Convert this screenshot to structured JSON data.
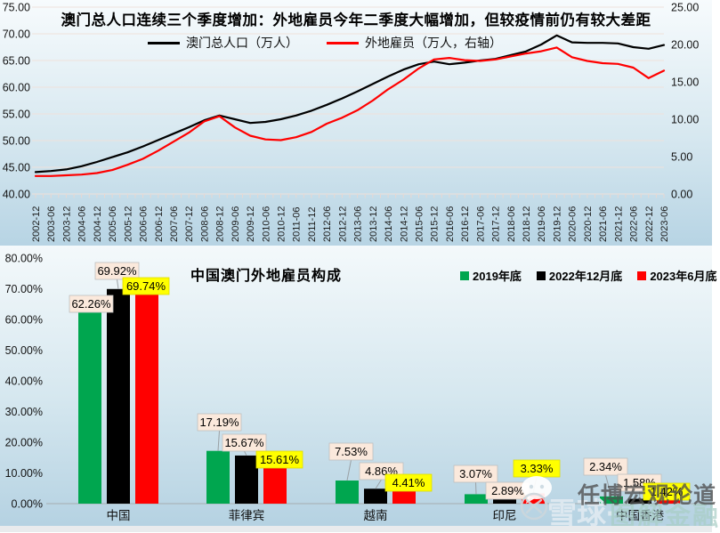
{
  "watermark": {
    "brand": "雪球·",
    "text1": "任博宏观论道",
    "text2": "图解金融"
  },
  "chart_data": [
    {
      "type": "line",
      "title": "澳门总人口连续三个季度增加：外地雇员今年二季度大幅增加，但较疫情前仍有较大差距",
      "x": [
        "2002-12",
        "2003-06",
        "2003-12",
        "2004-06",
        "2004-12",
        "2005-06",
        "2005-12",
        "2006-06",
        "2006-12",
        "2007-06",
        "2007-12",
        "2008-06",
        "2008-12",
        "2009-06",
        "2009-12",
        "2010-06",
        "2010-12",
        "2011-06",
        "2011-12",
        "2012-06",
        "2012-12",
        "2013-06",
        "2013-12",
        "2014-06",
        "2014-12",
        "2015-06",
        "2015-12",
        "2016-06",
        "2016-12",
        "2017-06",
        "2017-12",
        "2018-06",
        "2018-12",
        "2019-06",
        "2019-12",
        "2020-06",
        "2020-12",
        "2021-06",
        "2021-12",
        "2022-06",
        "2022-12",
        "2023-06"
      ],
      "series": [
        {
          "name": "澳门总人口（万人）",
          "color": "#000000",
          "axis": "left",
          "values": [
            44.1,
            44.3,
            44.6,
            45.2,
            46.0,
            46.9,
            47.8,
            48.9,
            50.1,
            51.3,
            52.5,
            53.8,
            54.7,
            54.0,
            53.3,
            53.5,
            54.0,
            54.7,
            55.6,
            56.7,
            57.9,
            59.2,
            60.6,
            62.0,
            63.3,
            64.3,
            64.8,
            64.3,
            64.6,
            65.0,
            65.3,
            66.0,
            66.7,
            68.0,
            69.7,
            68.4,
            68.3,
            68.3,
            68.2,
            67.5,
            67.2,
            67.9
          ]
        },
        {
          "name": "外地雇员（万人，右轴）",
          "color": "#FF0000",
          "axis": "right",
          "values": [
            2.4,
            2.4,
            2.5,
            2.6,
            2.8,
            3.2,
            3.9,
            4.7,
            5.8,
            7.0,
            8.2,
            9.7,
            10.4,
            8.9,
            7.8,
            7.3,
            7.2,
            7.6,
            8.3,
            9.4,
            10.2,
            11.2,
            12.5,
            14.0,
            15.3,
            16.8,
            18.0,
            18.2,
            17.9,
            17.8,
            18.0,
            18.4,
            18.8,
            19.1,
            19.6,
            18.3,
            17.8,
            17.5,
            17.4,
            16.9,
            15.5,
            16.5
          ]
        }
      ],
      "left_axis": {
        "range": [
          40,
          75
        ],
        "ticks": [
          "75.00",
          "70.00",
          "65.00",
          "60.00",
          "55.00",
          "50.00",
          "45.00",
          "40.00"
        ]
      },
      "right_axis": {
        "range": [
          0,
          25
        ],
        "ticks": [
          "25.00",
          "20.00",
          "15.00",
          "10.00",
          "5.00",
          "0.00"
        ]
      },
      "grid": true,
      "legend_position": "top-left"
    },
    {
      "type": "bar",
      "title": "中国澳门外地雇员构成",
      "categories": [
        "中国",
        "菲律宾",
        "越南",
        "印尼",
        "中国香港"
      ],
      "series": [
        {
          "name": "2019年底",
          "color": "#00A64F",
          "values": [
            62.26,
            17.19,
            7.53,
            3.07,
            2.34
          ],
          "labels": [
            "62.26%",
            "17.19%",
            "7.53%",
            "3.07%",
            "2.34%"
          ]
        },
        {
          "name": "2022年12月底",
          "color": "#000000",
          "values": [
            69.92,
            15.67,
            4.86,
            2.89,
            1.58
          ],
          "labels": [
            "69.92%",
            "15.67%",
            "4.86%",
            "2.89%",
            "1.58%"
          ]
        },
        {
          "name": "2023年6月底",
          "color": "#FF0000",
          "values": [
            69.74,
            15.61,
            4.41,
            3.33,
            1.42
          ],
          "labels": [
            "69.74%",
            "15.61%",
            "4.41%",
            "3.33%",
            "1.42%"
          ]
        }
      ],
      "ylim": [
        0,
        80
      ],
      "yticks": [
        "80.00%",
        "70.00%",
        "60.00%",
        "50.00%",
        "40.00%",
        "30.00%",
        "20.00%",
        "10.00%",
        "0.00%"
      ],
      "label_bg": "#FBE9DC",
      "label_bg_highlight": "#FFFF00",
      "grid": false,
      "legend_position": "top-right"
    }
  ]
}
